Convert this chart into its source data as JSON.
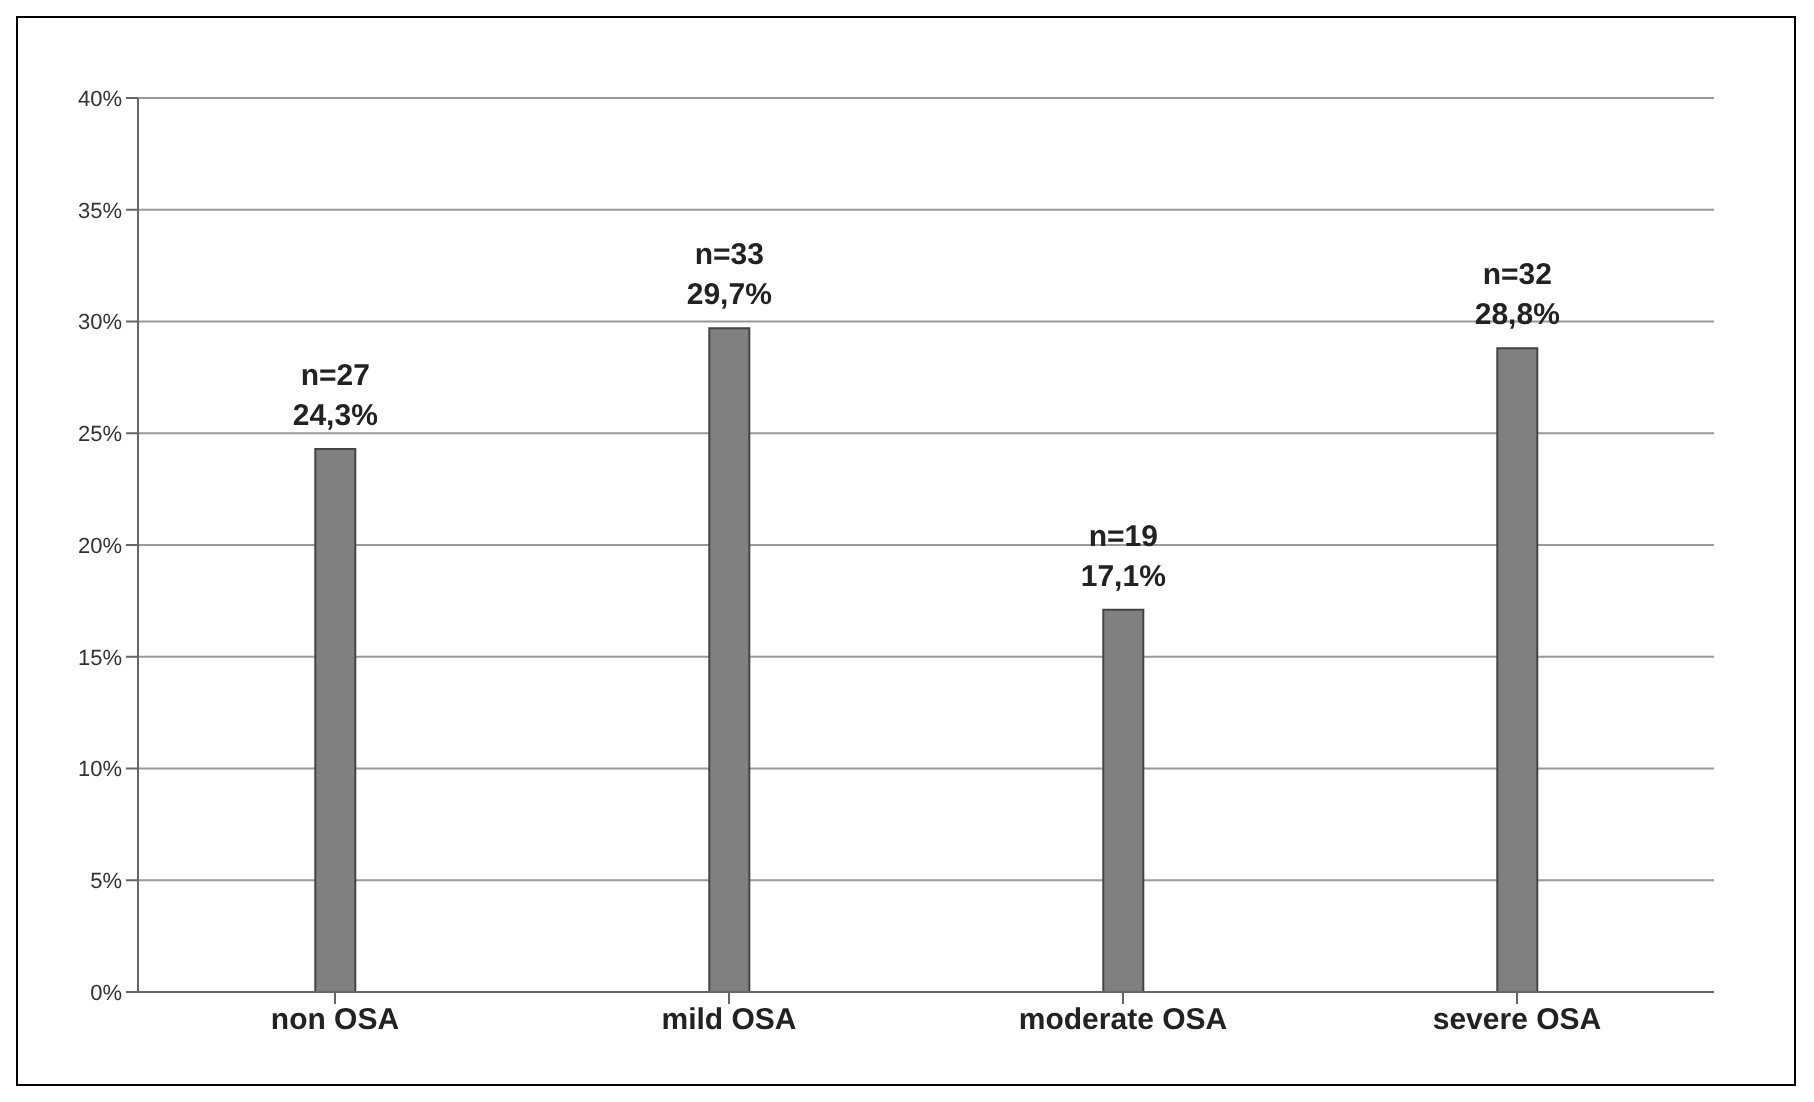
{
  "chart_data": {
    "type": "bar",
    "categories": [
      "non OSA",
      "mild OSA",
      "moderate OSA",
      "severe OSA"
    ],
    "values": [
      24.3,
      29.7,
      17.1,
      28.8
    ],
    "color": "#808080",
    "value_labels": [
      "n=27\n24,3%",
      "n=33\n29,7%",
      "n=19\n17,1%",
      "n=32\n28,8%"
    ],
    "ylim": [
      0,
      40
    ],
    "yticks": [
      {
        "value": 0,
        "label": "0%"
      },
      {
        "value": 5,
        "label": "5%"
      },
      {
        "value": 10,
        "label": "10%"
      },
      {
        "value": 15,
        "label": "15%"
      },
      {
        "value": 20,
        "label": "20%"
      },
      {
        "value": 25,
        "label": "25%"
      },
      {
        "value": 30,
        "label": "30%"
      },
      {
        "value": 35,
        "label": "35%"
      },
      {
        "value": 40,
        "label": "40%"
      }
    ],
    "grid": "y",
    "legend": false
  }
}
